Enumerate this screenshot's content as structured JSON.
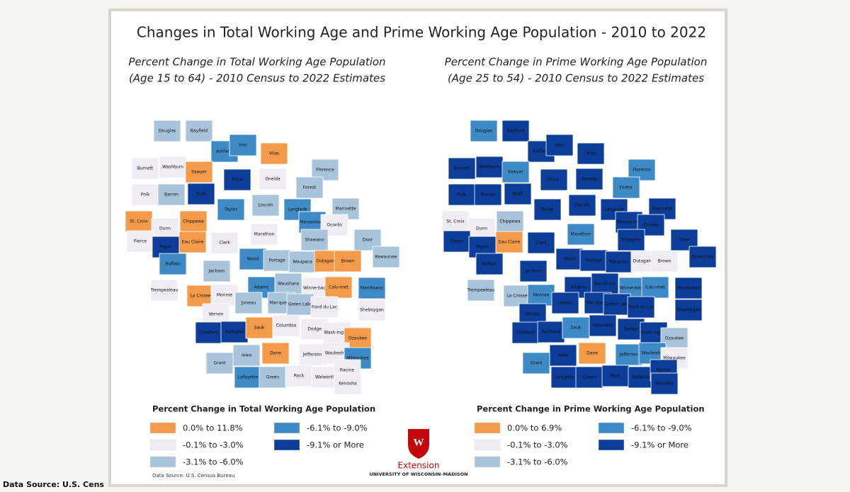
{
  "title": "Changes in Total Working Age and Prime Working Age Population - 2010 to 2022",
  "maps": [
    {
      "title_lines": [
        "Percent Change in Total Working Age Population",
        "(Age 15 to 64) - 2010 Census to 2022 Estimates"
      ],
      "legend_title": "Percent Change in Total Working Age Population",
      "legend": [
        {
          "label": "0.0% to 11.8%",
          "color": "#f39a4b"
        },
        {
          "label": "-0.1% to -3.0%",
          "color": "#efedf3"
        },
        {
          "label": "-3.1% to -6.0%",
          "color": "#a8c3da"
        },
        {
          "label": "-6.1% to -9.0%",
          "color": "#3e8ac6"
        },
        {
          "label": "-9.1% or More",
          "color": "#0c3d98"
        }
      ],
      "counties": [
        {
          "name": "Douglas",
          "color": "#a8c3da"
        },
        {
          "name": "Bayfield",
          "color": "#a8c3da"
        },
        {
          "name": "Ashland",
          "color": "#3e8ac6"
        },
        {
          "name": "Iron",
          "color": "#3e8ac6"
        },
        {
          "name": "Vilas",
          "color": "#f39a4b"
        },
        {
          "name": "Burnett",
          "color": "#efedf3"
        },
        {
          "name": "Washburn",
          "color": "#efedf3"
        },
        {
          "name": "Sawyer",
          "color": "#f39a4b"
        },
        {
          "name": "Price",
          "color": "#0c3d98"
        },
        {
          "name": "Oneida",
          "color": "#efedf3"
        },
        {
          "name": "Florence",
          "color": "#a8c3da"
        },
        {
          "name": "Forest",
          "color": "#a8c3da"
        },
        {
          "name": "Polk",
          "color": "#efedf3"
        },
        {
          "name": "Barron",
          "color": "#a8c3da"
        },
        {
          "name": "Rusk",
          "color": "#0c3d98"
        },
        {
          "name": "Lincoln",
          "color": "#a8c3da"
        },
        {
          "name": "Langlade",
          "color": "#3e8ac6"
        },
        {
          "name": "Marinette",
          "color": "#a8c3da"
        },
        {
          "name": "Taylor",
          "color": "#3e8ac6"
        },
        {
          "name": "St. Croix",
          "color": "#f39a4b"
        },
        {
          "name": "Dunn",
          "color": "#efedf3"
        },
        {
          "name": "Chippewa",
          "color": "#f39a4b"
        },
        {
          "name": "Menominee",
          "color": "#3e8ac6"
        },
        {
          "name": "Oconto",
          "color": "#efedf3"
        },
        {
          "name": "Marathon",
          "color": "#efedf3"
        },
        {
          "name": "Clark",
          "color": "#efedf3"
        },
        {
          "name": "Shawano",
          "color": "#a8c3da"
        },
        {
          "name": "Door",
          "color": "#a8c3da"
        },
        {
          "name": "Kewaunee",
          "color": "#a8c3da"
        },
        {
          "name": "Pierce",
          "color": "#efedf3"
        },
        {
          "name": "Pepin",
          "color": "#0c3d98"
        },
        {
          "name": "Eau Claire",
          "color": "#f39a4b"
        },
        {
          "name": "Buffalo",
          "color": "#3e8ac6"
        },
        {
          "name": "Jackson",
          "color": "#a8c3da"
        },
        {
          "name": "Wood",
          "color": "#3e8ac6"
        },
        {
          "name": "Portage",
          "color": "#a8c3da"
        },
        {
          "name": "Waupaca",
          "color": "#a8c3da"
        },
        {
          "name": "Outagamie",
          "color": "#f39a4b"
        },
        {
          "name": "Brown",
          "color": "#f39a4b"
        },
        {
          "name": "Trempealeau",
          "color": "#efedf3"
        },
        {
          "name": "Adams",
          "color": "#3e8ac6"
        },
        {
          "name": "Waushara",
          "color": "#a8c3da"
        },
        {
          "name": "Winne-bago",
          "color": "#efedf3"
        },
        {
          "name": "Calu-met",
          "color": "#f39a4b"
        },
        {
          "name": "Manitowoc",
          "color": "#3e8ac6"
        },
        {
          "name": "La Crosse",
          "color": "#f39a4b"
        },
        {
          "name": "Monroe",
          "color": "#efedf3"
        },
        {
          "name": "Juneau",
          "color": "#a8c3da"
        },
        {
          "name": "Mar-quette",
          "color": "#a8c3da"
        },
        {
          "name": "Green Lake",
          "color": "#a8c3da"
        },
        {
          "name": "Fond du Lac",
          "color": "#efedf3"
        },
        {
          "name": "Sheboygan",
          "color": "#efedf3"
        },
        {
          "name": "Vernon",
          "color": "#efedf3"
        },
        {
          "name": "Crawford",
          "color": "#0c3d98"
        },
        {
          "name": "Richland",
          "color": "#0c3d98"
        },
        {
          "name": "Sauk",
          "color": "#f39a4b"
        },
        {
          "name": "Columbia",
          "color": "#efedf3"
        },
        {
          "name": "Dodge",
          "color": "#efedf3"
        },
        {
          "name": "Wash-ington",
          "color": "#efedf3"
        },
        {
          "name": "Ozaukee",
          "color": "#f39a4b"
        },
        {
          "name": "Iowa",
          "color": "#a8c3da"
        },
        {
          "name": "Dane",
          "color": "#f39a4b"
        },
        {
          "name": "Jefferson",
          "color": "#efedf3"
        },
        {
          "name": "Waukesha",
          "color": "#efedf3"
        },
        {
          "name": "Milwaukee",
          "color": "#3e8ac6"
        },
        {
          "name": "Grant",
          "color": "#a8c3da"
        },
        {
          "name": "Lafayette",
          "color": "#3e8ac6"
        },
        {
          "name": "Green",
          "color": "#a8c3da"
        },
        {
          "name": "Rock",
          "color": "#efedf3"
        },
        {
          "name": "Walworth",
          "color": "#efedf3"
        },
        {
          "name": "Racine",
          "color": "#efedf3"
        },
        {
          "name": "Kenosha",
          "color": "#efedf3"
        }
      ]
    },
    {
      "title_lines": [
        "Percent Change in Prime Working Age Population",
        "(Age 25 to 54) - 2010 Census to 2022 Estimates"
      ],
      "legend_title": "Percent Change in Prime Working Age Population",
      "legend": [
        {
          "label": "0.0% to 6.9%",
          "color": "#f39a4b"
        },
        {
          "label": "-0.1% to -3.0%",
          "color": "#efedf3"
        },
        {
          "label": "-3.1% to -6.0%",
          "color": "#a8c3da"
        },
        {
          "label": "-6.1% to -9.0%",
          "color": "#3e8ac6"
        },
        {
          "label": "-9.1% or More",
          "color": "#0c3d98"
        }
      ],
      "counties": [
        {
          "name": "Douglas",
          "color": "#3e8ac6"
        },
        {
          "name": "Bayfield",
          "color": "#0c3d98"
        },
        {
          "name": "Ashland",
          "color": "#0c3d98"
        },
        {
          "name": "Iron",
          "color": "#0c3d98"
        },
        {
          "name": "Vilas",
          "color": "#0c3d98"
        },
        {
          "name": "Burnett",
          "color": "#0c3d98"
        },
        {
          "name": "Washburn",
          "color": "#0c3d98"
        },
        {
          "name": "Sawyer",
          "color": "#3e8ac6"
        },
        {
          "name": "Price",
          "color": "#0c3d98"
        },
        {
          "name": "Oneida",
          "color": "#0c3d98"
        },
        {
          "name": "Florence",
          "color": "#3e8ac6"
        },
        {
          "name": "Forest",
          "color": "#3e8ac6"
        },
        {
          "name": "Polk",
          "color": "#0c3d98"
        },
        {
          "name": "Barron",
          "color": "#0c3d98"
        },
        {
          "name": "Rusk",
          "color": "#0c3d98"
        },
        {
          "name": "Lincoln",
          "color": "#0c3d98"
        },
        {
          "name": "Langlade",
          "color": "#0c3d98"
        },
        {
          "name": "Marinette",
          "color": "#0c3d98"
        },
        {
          "name": "Taylor",
          "color": "#0c3d98"
        },
        {
          "name": "St. Croix",
          "color": "#efedf3"
        },
        {
          "name": "Dunn",
          "color": "#efedf3"
        },
        {
          "name": "Chippewa",
          "color": "#a8c3da"
        },
        {
          "name": "Menominee",
          "color": "#0c3d98"
        },
        {
          "name": "Oconto",
          "color": "#0c3d98"
        },
        {
          "name": "Marathon",
          "color": "#3e8ac6"
        },
        {
          "name": "Clark",
          "color": "#0c3d98"
        },
        {
          "name": "Shawano",
          "color": "#0c3d98"
        },
        {
          "name": "Door",
          "color": "#0c3d98"
        },
        {
          "name": "Kewaunee",
          "color": "#0c3d98"
        },
        {
          "name": "Pierce",
          "color": "#0c3d98"
        },
        {
          "name": "Pepin",
          "color": "#0c3d98"
        },
        {
          "name": "Eau Claire",
          "color": "#f39a4b"
        },
        {
          "name": "Buffalo",
          "color": "#0c3d98"
        },
        {
          "name": "Jackson",
          "color": "#0c3d98"
        },
        {
          "name": "Wood",
          "color": "#0c3d98"
        },
        {
          "name": "Portage",
          "color": "#0c3d98"
        },
        {
          "name": "Waupaca",
          "color": "#0c3d98"
        },
        {
          "name": "Outagamie",
          "color": "#efedf3"
        },
        {
          "name": "Brown",
          "color": "#efedf3"
        },
        {
          "name": "Trempealeau",
          "color": "#a8c3da"
        },
        {
          "name": "Adams",
          "color": "#0c3d98"
        },
        {
          "name": "Waushara",
          "color": "#0c3d98"
        },
        {
          "name": "Winne-bago",
          "color": "#3e8ac6"
        },
        {
          "name": "Calu-met",
          "color": "#3e8ac6"
        },
        {
          "name": "Manitowoc",
          "color": "#0c3d98"
        },
        {
          "name": "La Crosse",
          "color": "#a8c3da"
        },
        {
          "name": "Monroe",
          "color": "#3e8ac6"
        },
        {
          "name": "Juneau",
          "color": "#0c3d98"
        },
        {
          "name": "Mar-quette",
          "color": "#0c3d98"
        },
        {
          "name": "Green Lake",
          "color": "#0c3d98"
        },
        {
          "name": "Fond du Lac",
          "color": "#0c3d98"
        },
        {
          "name": "Sheboygan",
          "color": "#0c3d98"
        },
        {
          "name": "Vernon",
          "color": "#0c3d98"
        },
        {
          "name": "Crawford",
          "color": "#0c3d98"
        },
        {
          "name": "Richland",
          "color": "#0c3d98"
        },
        {
          "name": "Sauk",
          "color": "#3e8ac6"
        },
        {
          "name": "Columbia",
          "color": "#0c3d98"
        },
        {
          "name": "Dodge",
          "color": "#0c3d98"
        },
        {
          "name": "Wash-ington",
          "color": "#0c3d98"
        },
        {
          "name": "Ozaukee",
          "color": "#a8c3da"
        },
        {
          "name": "Iowa",
          "color": "#0c3d98"
        },
        {
          "name": "Dane",
          "color": "#f39a4b"
        },
        {
          "name": "Jefferson",
          "color": "#3e8ac6"
        },
        {
          "name": "Waukesha",
          "color": "#3e8ac6"
        },
        {
          "name": "Milwaukee",
          "color": "#efedf3"
        },
        {
          "name": "Grant",
          "color": "#3e8ac6"
        },
        {
          "name": "Lafayette",
          "color": "#0c3d98"
        },
        {
          "name": "Green",
          "color": "#0c3d98"
        },
        {
          "name": "Rock",
          "color": "#0c3d98"
        },
        {
          "name": "Walworth",
          "color": "#0c3d98"
        },
        {
          "name": "Racine",
          "color": "#0c3d98"
        },
        {
          "name": "Kenosha",
          "color": "#0c3d98"
        }
      ]
    }
  ],
  "map_source": "Data Source: U.S. Census Bureau",
  "logo": {
    "mark": "W",
    "name": "Extension",
    "university": "UNIVERSITY OF WISCONSIN–MADISON"
  },
  "footer": "Data Source: U.S. Cens"
}
